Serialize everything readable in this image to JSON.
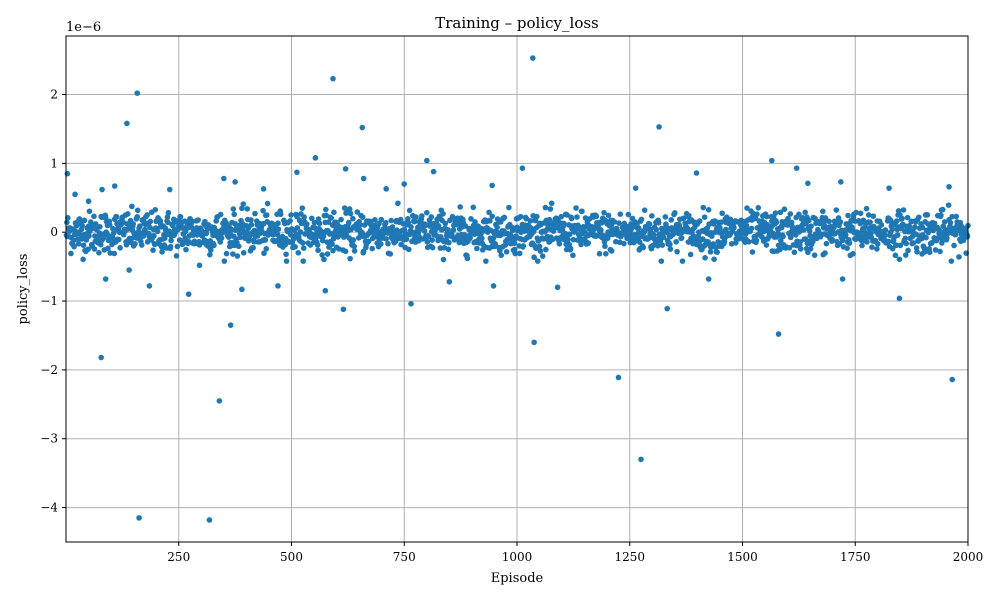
{
  "chart_data": {
    "type": "scatter",
    "title": "Training – policy_loss",
    "xlabel": "Episode",
    "ylabel": "policy_loss",
    "offset_label": "1e−6",
    "xlim": [
      0,
      2000
    ],
    "ylim": [
      -4.5,
      2.85
    ],
    "x_ticks": [
      250,
      500,
      750,
      1000,
      1250,
      1500,
      1750,
      2000
    ],
    "y_ticks": [
      -4,
      -3,
      -2,
      -1,
      0,
      1,
      2
    ],
    "y_tick_labels": [
      "−4",
      "−3",
      "−2",
      "−1",
      "0",
      "1",
      "2"
    ],
    "grid": true,
    "marker_color": "#1f77b4",
    "n_points": 2000,
    "core_spread": 0.15,
    "outliers": [
      {
        "x": 3,
        "y": 0.85
      },
      {
        "x": 20,
        "y": 0.55
      },
      {
        "x": 50,
        "y": 0.45
      },
      {
        "x": 78,
        "y": -1.82
      },
      {
        "x": 80,
        "y": 0.62
      },
      {
        "x": 88,
        "y": -0.68
      },
      {
        "x": 108,
        "y": 0.67
      },
      {
        "x": 135,
        "y": 1.58
      },
      {
        "x": 140,
        "y": -0.55
      },
      {
        "x": 158,
        "y": 2.02
      },
      {
        "x": 162,
        "y": -4.15
      },
      {
        "x": 185,
        "y": -0.78
      },
      {
        "x": 230,
        "y": 0.62
      },
      {
        "x": 272,
        "y": -0.9
      },
      {
        "x": 296,
        "y": -0.48
      },
      {
        "x": 318,
        "y": -4.18
      },
      {
        "x": 340,
        "y": -2.45
      },
      {
        "x": 350,
        "y": 0.78
      },
      {
        "x": 365,
        "y": -1.35
      },
      {
        "x": 375,
        "y": 0.73
      },
      {
        "x": 390,
        "y": -0.83
      },
      {
        "x": 438,
        "y": 0.63
      },
      {
        "x": 470,
        "y": -0.78
      },
      {
        "x": 512,
        "y": 0.87
      },
      {
        "x": 553,
        "y": 1.08
      },
      {
        "x": 575,
        "y": -0.85
      },
      {
        "x": 592,
        "y": 2.23
      },
      {
        "x": 615,
        "y": -1.12
      },
      {
        "x": 620,
        "y": 0.92
      },
      {
        "x": 657,
        "y": 1.52
      },
      {
        "x": 660,
        "y": 0.78
      },
      {
        "x": 710,
        "y": 0.63
      },
      {
        "x": 750,
        "y": 0.7
      },
      {
        "x": 765,
        "y": -1.04
      },
      {
        "x": 800,
        "y": 1.04
      },
      {
        "x": 815,
        "y": 0.88
      },
      {
        "x": 850,
        "y": -0.72
      },
      {
        "x": 945,
        "y": 0.68
      },
      {
        "x": 948,
        "y": -0.78
      },
      {
        "x": 1012,
        "y": 0.93
      },
      {
        "x": 1035,
        "y": 2.53
      },
      {
        "x": 1038,
        "y": -1.6
      },
      {
        "x": 1090,
        "y": -0.8
      },
      {
        "x": 1225,
        "y": -2.11
      },
      {
        "x": 1263,
        "y": 0.64
      },
      {
        "x": 1275,
        "y": -3.3
      },
      {
        "x": 1315,
        "y": 1.53
      },
      {
        "x": 1333,
        "y": -1.11
      },
      {
        "x": 1398,
        "y": 0.86
      },
      {
        "x": 1425,
        "y": -0.68
      },
      {
        "x": 1565,
        "y": 1.04
      },
      {
        "x": 1580,
        "y": -1.48
      },
      {
        "x": 1620,
        "y": 0.93
      },
      {
        "x": 1645,
        "y": 0.71
      },
      {
        "x": 1718,
        "y": 0.73
      },
      {
        "x": 1722,
        "y": -0.68
      },
      {
        "x": 1825,
        "y": 0.64
      },
      {
        "x": 1848,
        "y": -0.96
      },
      {
        "x": 1958,
        "y": 0.66
      },
      {
        "x": 1965,
        "y": -2.14
      }
    ]
  }
}
